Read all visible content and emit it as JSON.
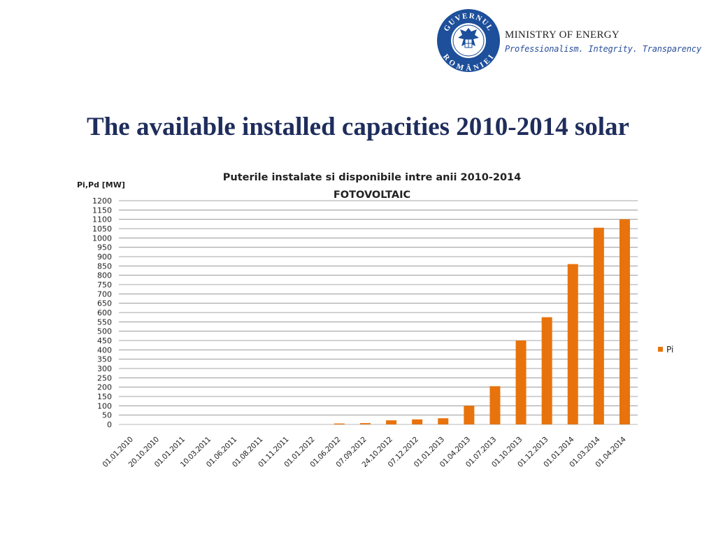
{
  "header": {
    "seal_text_top": "GUVERNUL",
    "seal_text_bottom": "ROMÂNIEI",
    "ministry": "MINISTRY OF ENERGY",
    "tagline": "Professionalism. Integrity. Transparency"
  },
  "slide": {
    "title": "The available installed capacities 2010-2014 solar"
  },
  "colors": {
    "bar": "#e8730c",
    "title": "#1f2d5c",
    "seal": "#1d4f9a",
    "tagline": "#2a4f9c"
  },
  "chart_data": {
    "type": "bar",
    "title_line1": "Puterile instalate si disponibile intre anii 2010-2014",
    "title_line2": "FOTOVOLTAIC",
    "ylabel": "Pi,Pd [MW]",
    "xlabel": "",
    "ylim": [
      0,
      1200
    ],
    "ytick_step": 50,
    "grid": true,
    "legend_position": "right",
    "categories": [
      "01.01.2010",
      "20.10.2010",
      "01.01.2011",
      "10.03.2011",
      "01.06.2011",
      "01.08.2011",
      "01.11.2011",
      "01.01.2012",
      "01.06.2012",
      "07.09.2012",
      "24.10.2012",
      "07.12.2012",
      "01.01.2013",
      "01.04.2013",
      "01.07.2013",
      "01.10.2013",
      "01.12.2013",
      "01.01.2014",
      "01.03.2014",
      "01.04.2014"
    ],
    "series": [
      {
        "name": "Pi",
        "values": [
          0,
          0,
          0,
          0,
          0,
          0,
          0,
          0,
          5,
          7,
          22,
          27,
          33,
          100,
          205,
          450,
          575,
          860,
          1055,
          1100
        ]
      }
    ]
  }
}
